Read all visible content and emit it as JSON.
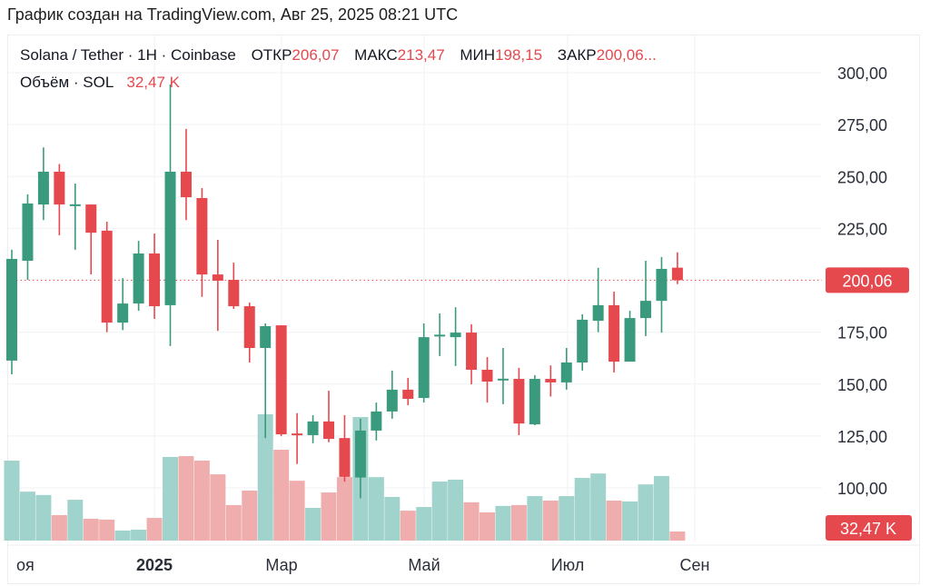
{
  "caption": "График создан на TradingView.com, Авг 25, 2025 08:21 UTC",
  "legend": {
    "symbol": "Solana / Tether · 1Н · Coinbase",
    "open_label": "ОТКР",
    "open": "206,07",
    "high_label": "МАКС",
    "high": "213,47",
    "low_label": "МИН",
    "low": "198,15",
    "close_label": "ЗАКР",
    "close": "200,06...",
    "volume_label": "Объём · SOL",
    "volume": "32,47 K"
  },
  "colors": {
    "up": "#3a9a7d",
    "down": "#e5484d",
    "up_vol": "#9fd3cb",
    "down_vol": "#efadad",
    "grid": "#f0f2f5"
  },
  "chart_data": {
    "type": "candlestick",
    "title": "Solana / Tether · 1Н · Coinbase",
    "ylim": [
      85,
      305
    ],
    "y_ticks": [
      "300,00",
      "275,00",
      "250,00",
      "225,00",
      "175,00",
      "150,00",
      "125,00",
      "100,00"
    ],
    "y_tick_values": [
      300,
      275,
      250,
      225,
      175,
      150,
      125,
      100
    ],
    "x_labels": [
      "оя",
      "2025",
      "Мар",
      "Май",
      "Июл",
      "Сен"
    ],
    "last_price_label": "200,06",
    "last_price": 200.06,
    "last_volume_label": "32,47 K",
    "volume_unit": "K",
    "candles": [
      [
        161.3,
        214.7,
        154.7,
        210.3,
        286
      ],
      [
        209.4,
        241.4,
        200.2,
        237.0,
        175
      ],
      [
        236.5,
        264.0,
        229.0,
        252.3,
        163
      ],
      [
        252.3,
        256.0,
        221.7,
        236.5,
        91
      ],
      [
        236.5,
        246.6,
        214.7,
        236.6,
        146
      ],
      [
        236.5,
        236.5,
        202.8,
        222.9,
        78
      ],
      [
        223.9,
        228.2,
        175.0,
        179.6,
        75
      ],
      [
        179.6,
        201.0,
        176.0,
        188.8,
        36
      ],
      [
        188.8,
        219.0,
        185.3,
        212.9,
        39
      ],
      [
        212.9,
        222.5,
        181.4,
        187.5,
        81
      ],
      [
        188.0,
        294.3,
        168.3,
        252.3,
        299
      ],
      [
        252.3,
        272.9,
        229.0,
        240.0,
        302
      ],
      [
        239.6,
        244.4,
        192.0,
        202.8,
        286
      ],
      [
        202.8,
        219.5,
        175.6,
        199.8,
        237
      ],
      [
        200.2,
        208.5,
        186.2,
        187.5,
        127
      ],
      [
        187.5,
        189.3,
        160.4,
        167.4,
        179
      ],
      [
        167.4,
        179.2,
        124.0,
        177.9,
        452
      ],
      [
        178.3,
        178.3,
        125.0,
        125.8,
        325
      ],
      [
        126.2,
        136.0,
        111.5,
        126.0,
        214
      ],
      [
        125.4,
        135.0,
        121.5,
        132.0,
        117
      ],
      [
        132.0,
        146.8,
        122.0,
        123.6,
        172
      ],
      [
        124.0,
        135.0,
        103.0,
        105.3,
        227
      ],
      [
        105.0,
        133.3,
        95.0,
        127.6,
        442
      ],
      [
        127.6,
        141.1,
        122.8,
        136.8,
        227
      ],
      [
        136.8,
        156.5,
        133.3,
        147.3,
        156
      ],
      [
        147.3,
        153.0,
        139.8,
        142.9,
        107
      ],
      [
        143.3,
        179.2,
        141.1,
        172.6,
        120
      ],
      [
        173.3,
        184.0,
        163.5,
        173.8,
        211
      ],
      [
        172.6,
        187.0,
        158.7,
        174.8,
        218
      ],
      [
        174.8,
        178.8,
        149.9,
        156.9,
        137
      ],
      [
        156.9,
        163.0,
        141.1,
        151.2,
        101
      ],
      [
        152.3,
        167.4,
        140.3,
        152.6,
        124
      ],
      [
        152.5,
        157.8,
        125.4,
        131.0,
        127
      ],
      [
        130.6,
        154.3,
        130.2,
        152.5,
        159
      ],
      [
        152.5,
        159.0,
        144.0,
        150.8,
        143
      ],
      [
        150.8,
        167.4,
        147.3,
        160.4,
        159
      ],
      [
        160.4,
        183.6,
        156.5,
        181.0,
        224
      ],
      [
        180.5,
        206.0,
        175.0,
        188.0,
        240
      ],
      [
        188.0,
        194.5,
        155.6,
        160.8,
        143
      ],
      [
        160.8,
        185.3,
        160.8,
        181.8,
        140
      ],
      [
        181.8,
        209.4,
        173.1,
        190.1,
        201
      ],
      [
        190.1,
        211.2,
        174.8,
        205.5,
        231
      ],
      [
        206.07,
        213.47,
        198.15,
        200.06,
        32.47
      ]
    ],
    "candle_fields": [
      "open",
      "high",
      "low",
      "close",
      "volume_k"
    ]
  }
}
